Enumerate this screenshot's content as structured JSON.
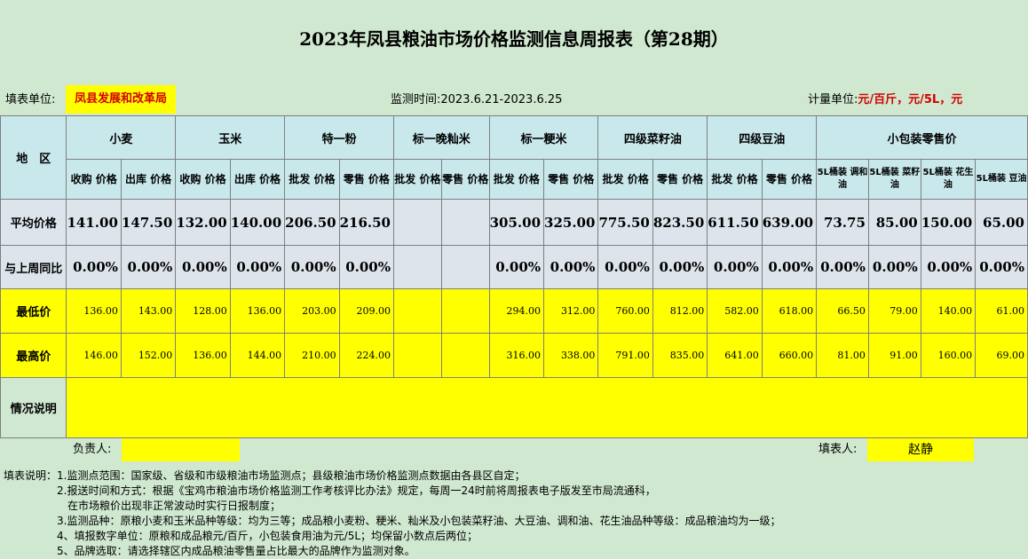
{
  "title": "2023年凤县粮油市场价格监测信息周报表（第28期）",
  "info": {
    "unit_label": "填表单位:",
    "unit_value": "凤县发展和改革局",
    "time_label": "监测时间:",
    "time_value": "2023.6.21-2023.6.25",
    "measure_label": "计量单位:",
    "measure_value": "元/百斤，元/5L，元"
  },
  "table": {
    "region_label": "地　区",
    "groups": [
      {
        "name": "小麦",
        "subs": [
          "收购\n价格",
          "出库\n价格"
        ]
      },
      {
        "name": "玉米",
        "subs": [
          "收购\n价格",
          "出库\n价格"
        ]
      },
      {
        "name": "特一粉",
        "subs": [
          "批发\n价格",
          "零售\n价格"
        ]
      },
      {
        "name": "标一晚籼米",
        "subs": [
          "批发\n价格",
          "零售\n价格"
        ]
      },
      {
        "name": "标一粳米",
        "subs": [
          "批发\n价格",
          "零售\n价格"
        ]
      },
      {
        "name": "四级菜籽油",
        "subs": [
          "批发\n价格",
          "零售\n价格"
        ]
      },
      {
        "name": "四级豆油",
        "subs": [
          "批发\n价格",
          "零售\n价格"
        ]
      },
      {
        "name": "小包装零售价",
        "subs": [
          "5L桶装\n调和油",
          "5L桶装\n菜籽油",
          "5L桶装\n花生油",
          "5L桶装\n豆油"
        ]
      }
    ],
    "rows": [
      {
        "label": "平均价格",
        "cls": "avg",
        "values": [
          "141.00",
          "147.50",
          "132.00",
          "140.00",
          "206.50",
          "216.50",
          "",
          "",
          "305.00",
          "325.00",
          "775.50",
          "823.50",
          "611.50",
          "639.00",
          "73.75",
          "85.00",
          "150.00",
          "65.00"
        ]
      },
      {
        "label": "与上周同比",
        "cls": "yoy",
        "values": [
          "0.00%",
          "0.00%",
          "0.00%",
          "0.00%",
          "0.00%",
          "0.00%",
          "",
          "",
          "0.00%",
          "0.00%",
          "0.00%",
          "0.00%",
          "0.00%",
          "0.00%",
          "0.00%",
          "0.00%",
          "0.00%",
          "0.00%"
        ]
      },
      {
        "label": "最低价",
        "cls": "ylw",
        "values": [
          "136.00",
          "143.00",
          "128.00",
          "136.00",
          "203.00",
          "209.00",
          "",
          "",
          "294.00",
          "312.00",
          "760.00",
          "812.00",
          "582.00",
          "618.00",
          "66.50",
          "79.00",
          "140.00",
          "61.00"
        ]
      },
      {
        "label": "最高价",
        "cls": "ylw",
        "values": [
          "146.00",
          "152.00",
          "136.00",
          "144.00",
          "210.00",
          "224.00",
          "",
          "",
          "316.00",
          "338.00",
          "791.00",
          "835.00",
          "641.00",
          "660.00",
          "81.00",
          "91.00",
          "160.00",
          "69.00"
        ]
      }
    ],
    "note_label": "情况说明",
    "note_value": ""
  },
  "sign": {
    "leader_label": "负责人:",
    "leader_value": "",
    "filler_label": "填表人:",
    "filler_value": "赵静"
  },
  "notes": [
    "填表说明：1.监测点范围：国家级、省级和市级粮油市场监测点；县级粮油市场价格监测点数据由各县区自定；",
    "　　　　　2.报送时间和方式：根据《宝鸡市粮油市场价格监测工作考核评比办法》规定，每周一24时前将周报表电子版发至市局流通科，",
    "　　　　　　在市场粮价出现非正常波动时实行日报制度；",
    "　　　　　3.监测品种：原粮小麦和玉米品种等级：均为三等；成品粮小麦粉、粳米、籼米及小包装菜籽油、大豆油、调和油、花生油品种等级：成品粮油均为一级；",
    "　　　　　4、填报数字单位：原粮和成品粮元/百斤，小包装食用油为元/5L；均保留小数点后两位；",
    "　　　　　5、品牌选取：请选择辖区内成品粮油零售量占比最大的品牌作为监测对象。"
  ]
}
